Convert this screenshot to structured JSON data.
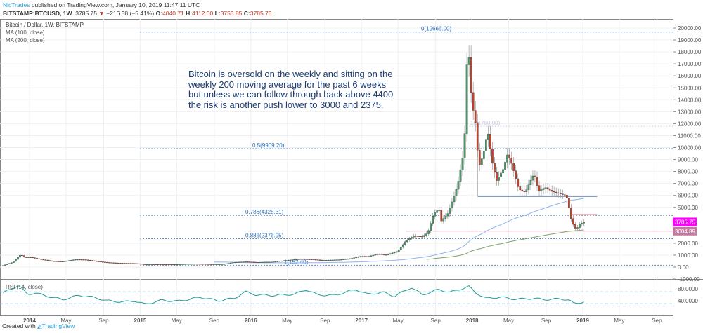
{
  "header": {
    "author": "NicTrades",
    "published": "published on TradingView.com, January 10, 2019 11:47:11 UTC",
    "symbol": "BITSTAMP:BTCUSD, 1W",
    "last": "3785.75",
    "change": "−216.38 (−5.41%)",
    "o_label": "O:",
    "o": "4040.71",
    "h_label": "H:",
    "h": "4112.00",
    "l_label": "L:",
    "l": "3753.85",
    "c_label": "C:",
    "c": "3785.75"
  },
  "legend": {
    "title": "Bitcoin / Dollar, 1W, BITSTAMP",
    "ma100": "MA (100, close)",
    "ma200": "MA (200, close)",
    "rsi": "RSI (14, close)"
  },
  "annotation": "Bitcoin is oversold on the weekly and sitting on the weekly 200 moving average for the past 6 weeks but unless we can follow through back above 4400 the risk is another push lower to 3000 and 2375.",
  "footer": {
    "text": "Created with",
    "brand": "TradingView"
  },
  "colors": {
    "up": "#4e9a6b",
    "down": "#c8402a",
    "ma100": "#8fb4ef",
    "ma200": "#7ea36a",
    "fib": "#2e6db3",
    "rsi": "#1f9a94",
    "last": "#ff00ff",
    "support": "#c27ba0"
  },
  "chart_data": {
    "type": "candlestick",
    "title": "Bitcoin / Dollar, 1W, BITSTAMP",
    "ylim": [
      -1000,
      20500
    ],
    "y_ticks": [
      "20000.00",
      "19000.00",
      "18000.00",
      "17000.00",
      "16000.00",
      "15000.00",
      "14000.00",
      "13000.00",
      "12000.00",
      "11000.00",
      "10000.00",
      "9000.00",
      "8000.00",
      "7000.00",
      "6000.00",
      "5000.00",
      "2000.00",
      "1000.00",
      "0.00",
      "-1000.00"
    ],
    "y_tick_values": [
      20000,
      19000,
      18000,
      17000,
      16000,
      15000,
      14000,
      13000,
      12000,
      11000,
      10000,
      9000,
      8000,
      7000,
      6000,
      5000,
      2000,
      1000,
      0,
      -1000
    ],
    "x_ticks": [
      "2014",
      "May",
      "Sep",
      "2015",
      "May",
      "Sep",
      "2016",
      "May",
      "Sep",
      "2017",
      "May",
      "Sep",
      "2018",
      "May",
      "Sep",
      "2019",
      "May",
      "Sep"
    ],
    "x_tick_values": [
      2014,
      2014.33,
      2014.67,
      2015,
      2015.33,
      2015.67,
      2016,
      2016.33,
      2016.67,
      2017,
      2017.33,
      2017.67,
      2018,
      2018.33,
      2018.67,
      2019,
      2019.33,
      2019.67
    ],
    "price_keypoints": [
      [
        2013.76,
        125
      ],
      [
        2013.85,
        400
      ],
      [
        2013.92,
        1000
      ],
      [
        2013.96,
        750
      ],
      [
        2014.0,
        800
      ],
      [
        2014.08,
        650
      ],
      [
        2014.2,
        480
      ],
      [
        2014.3,
        450
      ],
      [
        2014.42,
        630
      ],
      [
        2014.5,
        620
      ],
      [
        2014.6,
        500
      ],
      [
        2014.7,
        400
      ],
      [
        2014.8,
        350
      ],
      [
        2014.92,
        330
      ],
      [
        2015.0,
        290
      ],
      [
        2015.04,
        220
      ],
      [
        2015.1,
        250
      ],
      [
        2015.3,
        230
      ],
      [
        2015.5,
        280
      ],
      [
        2015.65,
        230
      ],
      [
        2015.75,
        240
      ],
      [
        2015.85,
        380
      ],
      [
        2015.95,
        430
      ],
      [
        2016.05,
        380
      ],
      [
        2016.2,
        420
      ],
      [
        2016.45,
        680
      ],
      [
        2016.55,
        650
      ],
      [
        2016.65,
        580
      ],
      [
        2016.8,
        640
      ],
      [
        2016.9,
        750
      ],
      [
        2017.0,
        960
      ],
      [
        2017.05,
        900
      ],
      [
        2017.15,
        1150
      ],
      [
        2017.22,
        1050
      ],
      [
        2017.33,
        1350
      ],
      [
        2017.4,
        2200
      ],
      [
        2017.47,
        2600
      ],
      [
        2017.55,
        2500
      ],
      [
        2017.6,
        2800
      ],
      [
        2017.65,
        4300
      ],
      [
        2017.7,
        4700
      ],
      [
        2017.72,
        3700
      ],
      [
        2017.78,
        4300
      ],
      [
        2017.85,
        6000
      ],
      [
        2017.88,
        7000
      ],
      [
        2017.92,
        9000
      ],
      [
        2017.94,
        11500
      ],
      [
        2017.96,
        19000
      ],
      [
        2017.98,
        15000
      ],
      [
        2018.0,
        13000
      ],
      [
        2018.03,
        11500
      ],
      [
        2018.06,
        8000
      ],
      [
        2018.1,
        9000
      ],
      [
        2018.14,
        11000
      ],
      [
        2018.18,
        8500
      ],
      [
        2018.22,
        7000
      ],
      [
        2018.28,
        8000
      ],
      [
        2018.32,
        9300
      ],
      [
        2018.36,
        8500
      ],
      [
        2018.42,
        6500
      ],
      [
        2018.48,
        6300
      ],
      [
        2018.53,
        7400
      ],
      [
        2018.56,
        8000
      ],
      [
        2018.6,
        6500
      ],
      [
        2018.66,
        6900
      ],
      [
        2018.72,
        6600
      ],
      [
        2018.8,
        6400
      ],
      [
        2018.85,
        6300
      ],
      [
        2018.87,
        5500
      ],
      [
        2018.9,
        4000
      ],
      [
        2018.94,
        3300
      ],
      [
        2018.96,
        3600
      ],
      [
        2018.98,
        3900
      ],
      [
        2019.01,
        3785
      ]
    ],
    "fib_levels": [
      {
        "label": "0(19666.00)",
        "value": 19666,
        "from": 2015
      },
      {
        "label": "0.5(9909.20)",
        "value": 9909.2,
        "from": 2015
      },
      {
        "label": "0.786(4328.31)",
        "value": 4328.31,
        "from": 2015
      },
      {
        "label": "0.886(2376.95)",
        "value": 2376.95,
        "from": 2015
      },
      {
        "label": "1(152.40)",
        "value": 152.4,
        "from": 2015
      },
      {
        "label": "1(11780.00)",
        "value": 11780,
        "from": 2017.95
      }
    ],
    "support_line": {
      "value": 5900,
      "from": 2018.05,
      "to": 2019.13
    },
    "resistance_line": {
      "value": 4400,
      "from": 2018.9,
      "to": 2019.13
    },
    "last_price": {
      "label": "3785.75",
      "value": 3785.75
    },
    "ma200_marker": {
      "label": "3004.89",
      "value": 3004.89
    },
    "rsi": {
      "label": "RSI (14, close)",
      "ticks": [
        "80.0000",
        "40.0000"
      ],
      "tick_values": [
        80,
        40
      ],
      "bands": [
        70,
        30
      ],
      "keypoints": [
        [
          2013.76,
          66
        ],
        [
          2013.9,
          92
        ],
        [
          2013.98,
          62
        ],
        [
          2014.05,
          66
        ],
        [
          2014.2,
          52
        ],
        [
          2014.3,
          44
        ],
        [
          2014.45,
          58
        ],
        [
          2014.6,
          50
        ],
        [
          2014.7,
          40
        ],
        [
          2014.85,
          36
        ],
        [
          2014.95,
          40
        ],
        [
          2015.04,
          28
        ],
        [
          2015.2,
          42
        ],
        [
          2015.33,
          38
        ],
        [
          2015.55,
          52
        ],
        [
          2015.7,
          40
        ],
        [
          2015.85,
          48
        ],
        [
          2015.95,
          70
        ],
        [
          2016.05,
          60
        ],
        [
          2016.2,
          58
        ],
        [
          2016.4,
          62
        ],
        [
          2016.5,
          78
        ],
        [
          2016.6,
          60
        ],
        [
          2016.75,
          58
        ],
        [
          2016.95,
          78
        ],
        [
          2017.05,
          62
        ],
        [
          2017.2,
          68
        ],
        [
          2017.3,
          55
        ],
        [
          2017.45,
          85
        ],
        [
          2017.55,
          60
        ],
        [
          2017.7,
          78
        ],
        [
          2017.8,
          68
        ],
        [
          2017.92,
          82
        ],
        [
          2017.97,
          88
        ],
        [
          2018.03,
          68
        ],
        [
          2018.12,
          48
        ],
        [
          2018.25,
          52
        ],
        [
          2018.4,
          45
        ],
        [
          2018.55,
          48
        ],
        [
          2018.65,
          44
        ],
        [
          2018.8,
          46
        ],
        [
          2018.87,
          44
        ],
        [
          2018.92,
          30
        ],
        [
          2018.96,
          32
        ],
        [
          2019.01,
          38
        ]
      ]
    }
  }
}
